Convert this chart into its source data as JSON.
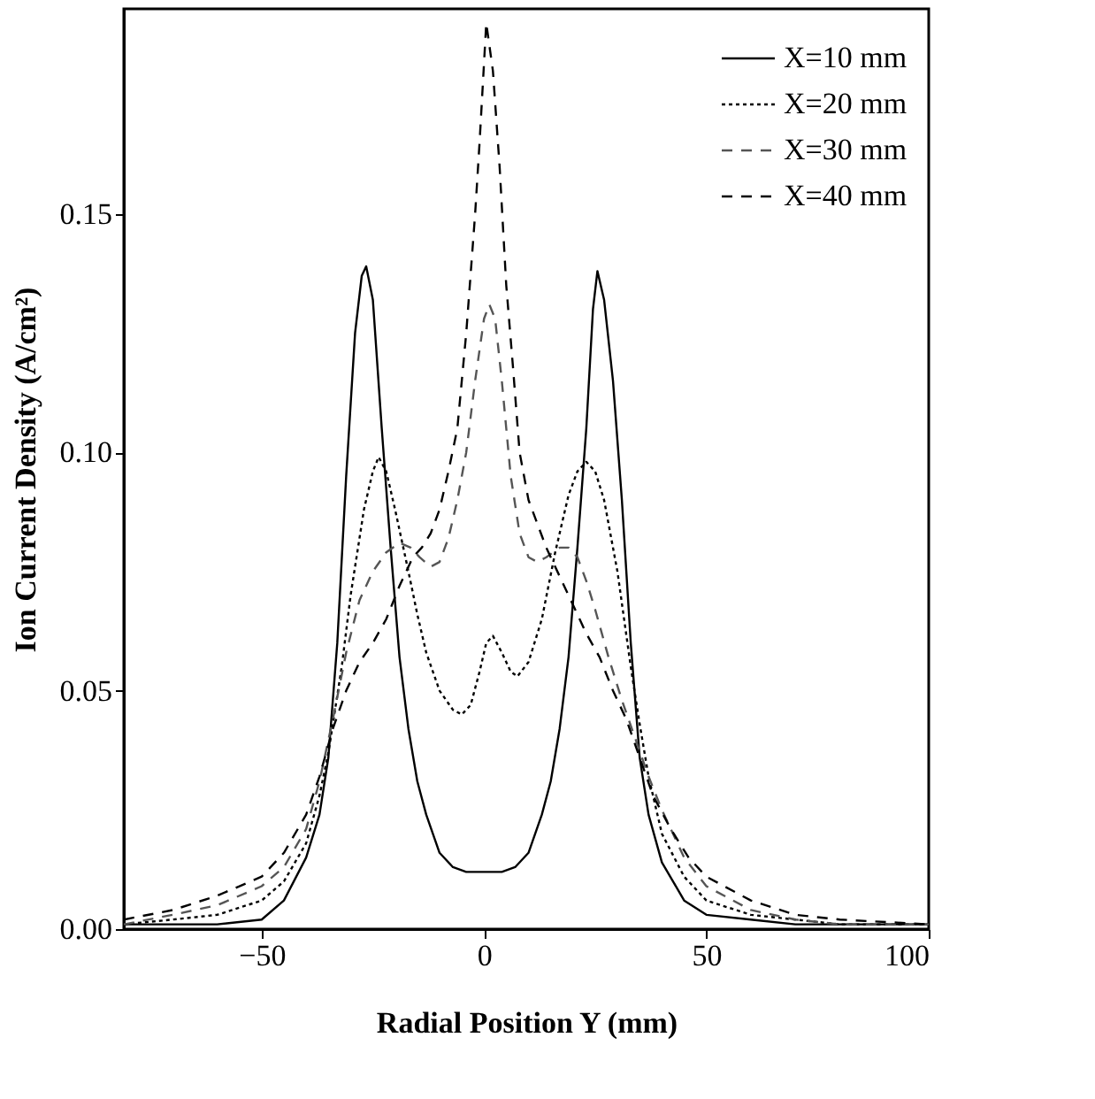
{
  "chart_data": {
    "type": "line",
    "xlabel": "Radial Position Y (mm)",
    "ylabel": "Ion Current Density (A/cm²)",
    "xlim": [
      -81,
      100
    ],
    "xticks": [
      -50,
      0,
      50,
      100
    ],
    "ylim": [
      0,
      0.193
    ],
    "yticks": [
      {
        "value": 0,
        "label": "0.00"
      },
      {
        "value": 0.05,
        "label": "0.05"
      },
      {
        "value": 0.1,
        "label": "0.10"
      },
      {
        "value": 0.15,
        "label": "0.15"
      }
    ],
    "grid": false,
    "legend": "top right",
    "marker": "none",
    "series": [
      {
        "name": "X=10 mm",
        "color": "#000000",
        "line_style": "solid",
        "x": [
          -81,
          -70,
          -60,
          -50,
          -45,
          -40,
          -37,
          -35,
          -33,
          -31,
          -29,
          -27.5,
          -26.5,
          -25,
          -23,
          -21,
          -19,
          -17,
          -15,
          -13,
          -10,
          -7,
          -4,
          0,
          4,
          7,
          10,
          13,
          15,
          17,
          19,
          21,
          23,
          24.5,
          25.5,
          27,
          29,
          31,
          33,
          35,
          37,
          40,
          45,
          50,
          60,
          70,
          80,
          100
        ],
        "values": [
          0.001,
          0.001,
          0.001,
          0.002,
          0.006,
          0.015,
          0.024,
          0.036,
          0.06,
          0.095,
          0.125,
          0.137,
          0.139,
          0.132,
          0.105,
          0.08,
          0.057,
          0.042,
          0.031,
          0.024,
          0.016,
          0.013,
          0.012,
          0.012,
          0.012,
          0.013,
          0.016,
          0.024,
          0.031,
          0.042,
          0.057,
          0.08,
          0.105,
          0.13,
          0.138,
          0.132,
          0.115,
          0.09,
          0.06,
          0.036,
          0.024,
          0.014,
          0.006,
          0.003,
          0.002,
          0.001,
          0.001,
          0.001
        ]
      },
      {
        "name": "X=20 mm",
        "color": "#000000",
        "line_style": "dotted",
        "x": [
          -81,
          -70,
          -60,
          -50,
          -45,
          -40,
          -37,
          -35,
          -32,
          -30,
          -27,
          -25,
          -23.7,
          -22,
          -20,
          -17,
          -15,
          -13,
          -10,
          -7,
          -5,
          -3,
          -1,
          0.5,
          2,
          4,
          6,
          7.5,
          10,
          13,
          16,
          19,
          21,
          23,
          25,
          27,
          30,
          33,
          35,
          37,
          40,
          45,
          50,
          60,
          70,
          80,
          100
        ],
        "values": [
          0.001,
          0.002,
          0.003,
          0.006,
          0.01,
          0.018,
          0.028,
          0.037,
          0.055,
          0.07,
          0.088,
          0.096,
          0.099,
          0.096,
          0.088,
          0.075,
          0.066,
          0.058,
          0.05,
          0.046,
          0.045,
          0.047,
          0.054,
          0.06,
          0.0615,
          0.058,
          0.054,
          0.053,
          0.056,
          0.065,
          0.079,
          0.091,
          0.096,
          0.098,
          0.096,
          0.09,
          0.075,
          0.055,
          0.043,
          0.032,
          0.02,
          0.011,
          0.006,
          0.003,
          0.002,
          0.001,
          0.001
        ]
      },
      {
        "name": "X=30 mm",
        "color": "#555555",
        "line_style": "dashed",
        "x": [
          -81,
          -70,
          -60,
          -50,
          -45,
          -40,
          -37,
          -34,
          -31,
          -28,
          -25,
          -22,
          -19,
          -16.5,
          -14.5,
          -12,
          -10,
          -8,
          -6,
          -4,
          -2,
          0,
          1.2,
          2.5,
          4,
          6,
          8,
          10,
          12,
          14,
          17,
          19,
          21,
          23,
          25,
          28,
          31,
          34,
          37,
          40,
          45,
          50,
          60,
          70,
          80,
          100
        ],
        "values": [
          0.001,
          0.003,
          0.005,
          0.009,
          0.013,
          0.021,
          0.031,
          0.044,
          0.058,
          0.069,
          0.075,
          0.079,
          0.081,
          0.08,
          0.078,
          0.076,
          0.077,
          0.082,
          0.09,
          0.1,
          0.115,
          0.128,
          0.131,
          0.128,
          0.115,
          0.095,
          0.083,
          0.078,
          0.077,
          0.078,
          0.08,
          0.08,
          0.078,
          0.073,
          0.067,
          0.057,
          0.048,
          0.04,
          0.032,
          0.025,
          0.015,
          0.009,
          0.004,
          0.002,
          0.001,
          0.001
        ]
      },
      {
        "name": "X=40 mm",
        "color": "#000000",
        "line_style": "dashed",
        "x": [
          -81,
          -70,
          -60,
          -50,
          -45,
          -40,
          -37,
          -34,
          -31,
          -28,
          -25,
          -22,
          -19,
          -16,
          -14,
          -12,
          -10,
          -8,
          -6,
          -4,
          -2,
          -1,
          0.5,
          2,
          3.5,
          5,
          6.5,
          8,
          10,
          12,
          14,
          17,
          20,
          23,
          26,
          29,
          32,
          35,
          38,
          42,
          46,
          50,
          60,
          70,
          80,
          100
        ],
        "values": [
          0.002,
          0.004,
          0.007,
          0.011,
          0.016,
          0.024,
          0.032,
          0.042,
          0.05,
          0.056,
          0.06,
          0.065,
          0.072,
          0.078,
          0.08,
          0.083,
          0.088,
          0.096,
          0.105,
          0.125,
          0.15,
          0.165,
          0.19,
          0.18,
          0.16,
          0.135,
          0.118,
          0.1,
          0.09,
          0.085,
          0.08,
          0.074,
          0.068,
          0.062,
          0.057,
          0.05,
          0.044,
          0.036,
          0.028,
          0.021,
          0.015,
          0.011,
          0.006,
          0.003,
          0.002,
          0.001
        ]
      }
    ]
  }
}
